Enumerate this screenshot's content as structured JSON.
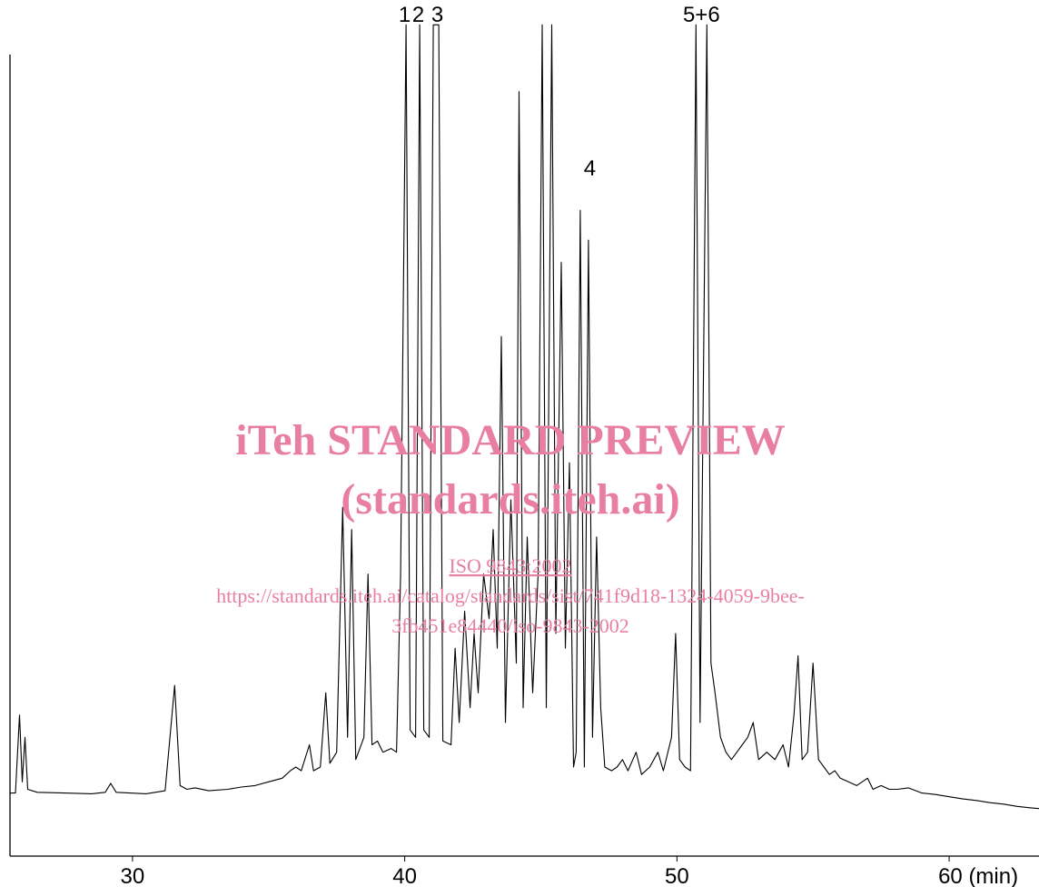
{
  "chart_data": {
    "type": "line",
    "title": "",
    "xlabel": "",
    "ylabel": "",
    "x_unit_label": "(min)",
    "xlim": [
      25.5,
      63.3
    ],
    "ylim": [
      -8,
      100
    ],
    "x_ticks": [
      30,
      40,
      50,
      60
    ],
    "x_tick_labels": [
      "30",
      "40",
      "50",
      "60 (min)"
    ],
    "grid": false,
    "legend": "none",
    "line_color": "#000000",
    "peak_labels": [
      {
        "text": "1",
        "x": 40.0,
        "y": 104
      },
      {
        "text": "2",
        "x": 40.5,
        "y": 104
      },
      {
        "text": "3",
        "x": 41.2,
        "y": 104
      },
      {
        "text": "4",
        "x": 46.8,
        "y": 83
      },
      {
        "text": "5+6",
        "x": 50.9,
        "y": 104
      }
    ],
    "series": [
      {
        "values": [
          [
            25.5,
            0.5
          ],
          [
            25.7,
            0.5
          ],
          [
            25.85,
            11
          ],
          [
            25.95,
            2
          ],
          [
            26.05,
            8
          ],
          [
            26.15,
            1
          ],
          [
            26.5,
            0.6
          ],
          [
            27.5,
            0.5
          ],
          [
            28.5,
            0.4
          ],
          [
            29.0,
            0.6
          ],
          [
            29.2,
            1.8
          ],
          [
            29.4,
            0.6
          ],
          [
            30.5,
            0.4
          ],
          [
            31.2,
            0.8
          ],
          [
            31.55,
            15
          ],
          [
            31.75,
            1.5
          ],
          [
            32.0,
            1.0
          ],
          [
            32.3,
            1.2
          ],
          [
            32.8,
            0.8
          ],
          [
            33.5,
            1.0
          ],
          [
            34.0,
            1.3
          ],
          [
            34.5,
            1.5
          ],
          [
            35.0,
            2.0
          ],
          [
            35.5,
            2.5
          ],
          [
            35.8,
            3.5
          ],
          [
            36.0,
            4.0
          ],
          [
            36.2,
            3.5
          ],
          [
            36.5,
            7.0
          ],
          [
            36.65,
            3.5
          ],
          [
            36.9,
            4.0
          ],
          [
            37.1,
            14
          ],
          [
            37.25,
            4.5
          ],
          [
            37.5,
            6.0
          ],
          [
            37.72,
            39
          ],
          [
            37.9,
            8
          ],
          [
            38.05,
            36
          ],
          [
            38.2,
            5.0
          ],
          [
            38.5,
            8.0
          ],
          [
            38.65,
            30
          ],
          [
            38.8,
            7.0
          ],
          [
            39.0,
            7.5
          ],
          [
            39.2,
            6.0
          ],
          [
            39.5,
            6.5
          ],
          [
            39.7,
            6.0
          ],
          [
            39.85,
            30
          ],
          [
            40.05,
            104
          ],
          [
            40.2,
            9.0
          ],
          [
            40.4,
            8.0
          ],
          [
            40.55,
            104
          ],
          [
            40.7,
            9.0
          ],
          [
            40.9,
            8.0
          ],
          [
            41.05,
            104
          ],
          [
            41.25,
            104
          ],
          [
            41.4,
            7.5
          ],
          [
            41.7,
            7.0
          ],
          [
            41.85,
            20
          ],
          [
            42.0,
            10
          ],
          [
            42.2,
            25
          ],
          [
            42.4,
            12
          ],
          [
            42.55,
            22
          ],
          [
            42.7,
            14
          ],
          [
            42.9,
            30
          ],
          [
            43.1,
            24
          ],
          [
            43.25,
            36
          ],
          [
            43.4,
            20
          ],
          [
            43.55,
            62
          ],
          [
            43.7,
            10
          ],
          [
            43.9,
            40
          ],
          [
            44.1,
            18
          ],
          [
            44.2,
            95
          ],
          [
            44.35,
            12
          ],
          [
            44.5,
            35
          ],
          [
            44.7,
            14
          ],
          [
            44.9,
            30
          ],
          [
            45.05,
            104
          ],
          [
            45.2,
            12
          ],
          [
            45.4,
            104
          ],
          [
            45.55,
            22
          ],
          [
            45.75,
            72
          ],
          [
            45.9,
            20
          ],
          [
            46.05,
            45
          ],
          [
            46.2,
            4.0
          ],
          [
            46.3,
            6.0
          ],
          [
            46.45,
            79
          ],
          [
            46.6,
            4.0
          ],
          [
            46.75,
            75
          ],
          [
            46.9,
            8.0
          ],
          [
            47.05,
            35
          ],
          [
            47.2,
            12
          ],
          [
            47.35,
            4.0
          ],
          [
            47.6,
            3.5
          ],
          [
            47.8,
            4.0
          ],
          [
            48.0,
            5.0
          ],
          [
            48.2,
            3.5
          ],
          [
            48.5,
            6.0
          ],
          [
            48.7,
            3.0
          ],
          [
            49.0,
            4.0
          ],
          [
            49.3,
            6.0
          ],
          [
            49.5,
            3.5
          ],
          [
            49.8,
            8.0
          ],
          [
            49.95,
            22
          ],
          [
            50.1,
            5.0
          ],
          [
            50.3,
            4.0
          ],
          [
            50.5,
            3.5
          ],
          [
            50.7,
            104
          ],
          [
            50.85,
            10
          ],
          [
            51.1,
            104
          ],
          [
            51.25,
            18
          ],
          [
            51.4,
            14
          ],
          [
            51.6,
            8.0
          ],
          [
            51.8,
            6.0
          ],
          [
            52.0,
            5.0
          ],
          [
            52.2,
            6.0
          ],
          [
            52.4,
            7.0
          ],
          [
            52.6,
            8.0
          ],
          [
            52.8,
            10
          ],
          [
            53.0,
            5.0
          ],
          [
            53.3,
            6.0
          ],
          [
            53.6,
            5.0
          ],
          [
            53.9,
            7.0
          ],
          [
            54.1,
            4.0
          ],
          [
            54.3,
            11
          ],
          [
            54.45,
            19
          ],
          [
            54.6,
            5.0
          ],
          [
            54.8,
            6.0
          ],
          [
            55.0,
            18
          ],
          [
            55.2,
            5.0
          ],
          [
            55.4,
            4.0
          ],
          [
            55.6,
            3.0
          ],
          [
            55.8,
            3.5
          ],
          [
            56.0,
            2.5
          ],
          [
            56.3,
            2.0
          ],
          [
            56.6,
            1.5
          ],
          [
            57.0,
            2.5
          ],
          [
            57.2,
            1.0
          ],
          [
            57.5,
            1.5
          ],
          [
            57.8,
            1.0
          ],
          [
            58.1,
            1.0
          ],
          [
            58.5,
            1.2
          ],
          [
            59.0,
            0.5
          ],
          [
            59.5,
            0.3
          ],
          [
            60.0,
            0.0
          ],
          [
            60.5,
            -0.3
          ],
          [
            61.0,
            -0.5
          ],
          [
            61.5,
            -0.8
          ],
          [
            62.0,
            -1.0
          ],
          [
            62.5,
            -1.3
          ],
          [
            63.0,
            -1.5
          ],
          [
            63.3,
            -1.6
          ]
        ]
      }
    ]
  },
  "watermark": {
    "line1": "iTeh STANDARD PREVIEW",
    "line2": "(standards.iteh.ai)",
    "line3": "ISO 9843:2002",
    "line4": "https://standards.iteh.ai/catalog/standards/sist/741f9d18-1324-4059-9bee-",
    "line5": "3fb451e84440/iso-9843-2002"
  }
}
